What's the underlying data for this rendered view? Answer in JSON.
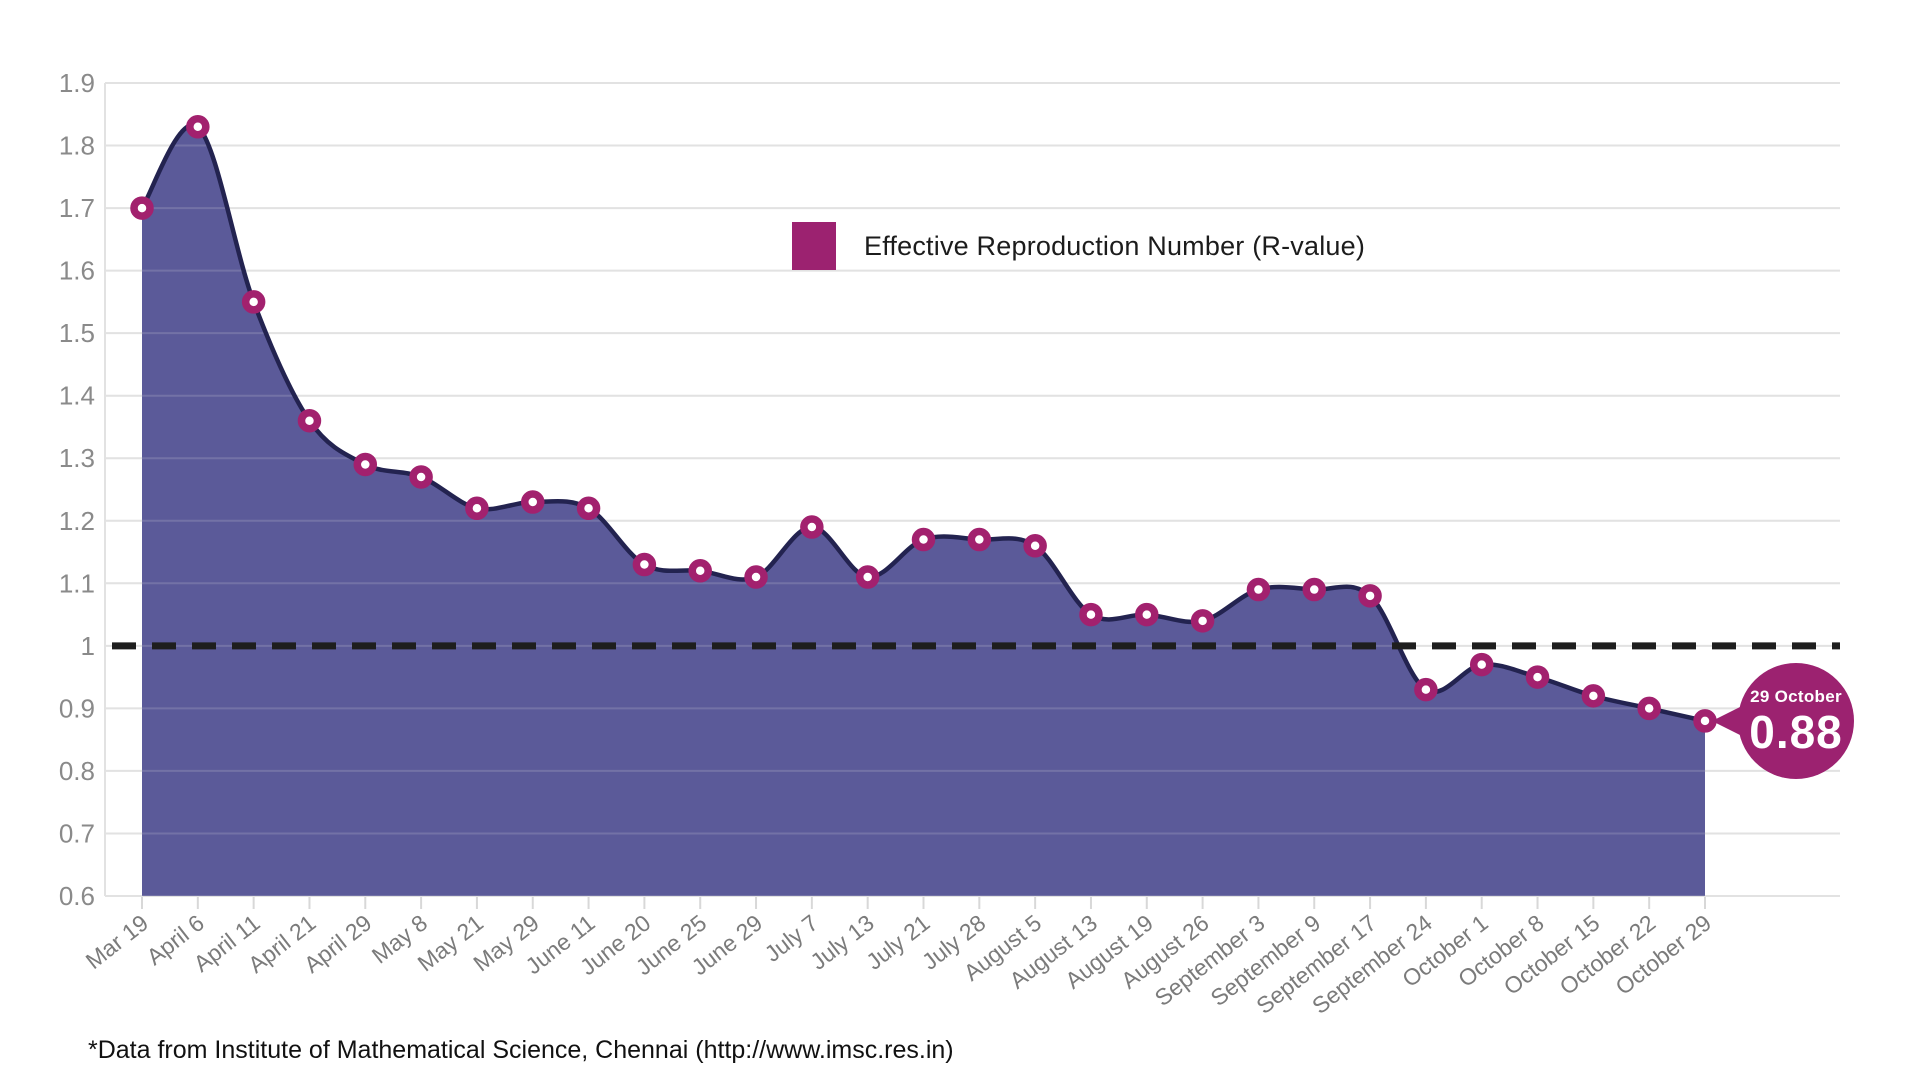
{
  "chart_data": {
    "type": "area",
    "title": "",
    "legend": [
      "Effective Reproduction Number (R-value)"
    ],
    "legend_position": "top-center",
    "grid": true,
    "categories": [
      "Mar 19",
      "April 6",
      "April 11",
      "April 21",
      "April 29",
      "May 8",
      "May 21",
      "May 29",
      "June 11",
      "June 20",
      "June 25",
      "June 29",
      "July 7",
      "July 13",
      "July 21",
      "July 28",
      "August 5",
      "August 13",
      "August 19",
      "August 26",
      "September 3",
      "September 9",
      "September 17",
      "September 24",
      "October 1",
      "October 8",
      "October 15",
      "October 22",
      "October 29"
    ],
    "series": [
      {
        "name": "Effective Reproduction Number (R-value)",
        "values": [
          1.7,
          1.83,
          1.55,
          1.36,
          1.29,
          1.27,
          1.22,
          1.23,
          1.22,
          1.13,
          1.12,
          1.11,
          1.19,
          1.11,
          1.17,
          1.17,
          1.16,
          1.05,
          1.05,
          1.04,
          1.09,
          1.09,
          1.08,
          0.93,
          0.97,
          0.95,
          0.92,
          0.9,
          0.88
        ]
      }
    ],
    "xlabel": "",
    "ylabel": "",
    "ylim": [
      0.6,
      1.9
    ],
    "ytick_labels": [
      "1.9",
      "1.8",
      "1.7",
      "1.6",
      "1.5",
      "1.4",
      "1.3",
      "1.2",
      "1.1",
      "1",
      "0.9",
      "0.8",
      "0.7",
      "0.6"
    ],
    "reference_line": {
      "value": 1,
      "style": "dashed"
    },
    "colors": {
      "area_fill": "#5b5a99",
      "line": "#232350",
      "marker_ring": "#a2216e",
      "marker_center": "#ffffff",
      "grid": "#e2e2e2",
      "axis_text": "#8a8a8a",
      "reference_line": "#1e1e1e",
      "badge": "#9c2270",
      "badge_text": "#ffffff"
    }
  },
  "legend": {
    "label": "Effective Reproduction Number (R-value)"
  },
  "annotation": {
    "date": "29 October",
    "value": "0.88"
  },
  "footnote": "*Data from Institute of Mathematical Science, Chennai (http://www.imsc.res.in)"
}
